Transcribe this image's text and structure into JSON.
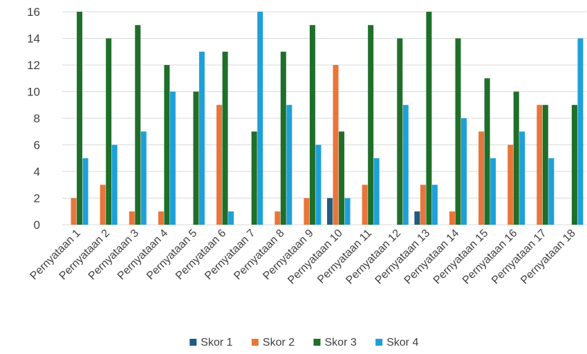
{
  "chart_data": {
    "type": "bar",
    "title": "",
    "xlabel": "",
    "ylabel": "",
    "ylim": [
      0,
      16
    ],
    "yticks": [
      0,
      2,
      4,
      6,
      8,
      10,
      12,
      14,
      16
    ],
    "grid": true,
    "legend_position": "bottom",
    "categories": [
      "Pernyataan 1",
      "Pernyataan 2",
      "Pernyataan 3",
      "Pernyataan 4",
      "Pernyataan 5",
      "Pernyataan 6",
      "Pernyataan 7",
      "Pernyataan 8",
      "Pernyataan 9",
      "Pernyataan 10",
      "Pernyataan 11",
      "Pernyataan 12",
      "Pernyataan 13",
      "Pernyataan 14",
      "Pernyataan 15",
      "Pernyataan 16",
      "Pernyataan 17",
      "Pernyataan 18"
    ],
    "series": [
      {
        "name": "Skor 1",
        "color": "#1f5c7f",
        "values": [
          0,
          0,
          0,
          0,
          0,
          0,
          0,
          0,
          0,
          2,
          0,
          0,
          1,
          0,
          0,
          0,
          0,
          0
        ]
      },
      {
        "name": "Skor 2",
        "color": "#e8753a",
        "values": [
          2,
          3,
          1,
          1,
          0,
          9,
          0,
          1,
          2,
          12,
          3,
          0,
          3,
          1,
          7,
          6,
          9,
          0
        ]
      },
      {
        "name": "Skor 3",
        "color": "#1f6f2a",
        "values": [
          16,
          14,
          15,
          12,
          10,
          13,
          7,
          13,
          15,
          7,
          15,
          14,
          16,
          14,
          11,
          10,
          9,
          9
        ]
      },
      {
        "name": "Skor 4",
        "color": "#1ea0d8",
        "values": [
          5,
          6,
          7,
          10,
          13,
          1,
          16,
          9,
          6,
          2,
          5,
          9,
          3,
          8,
          5,
          7,
          5,
          14
        ]
      }
    ]
  }
}
